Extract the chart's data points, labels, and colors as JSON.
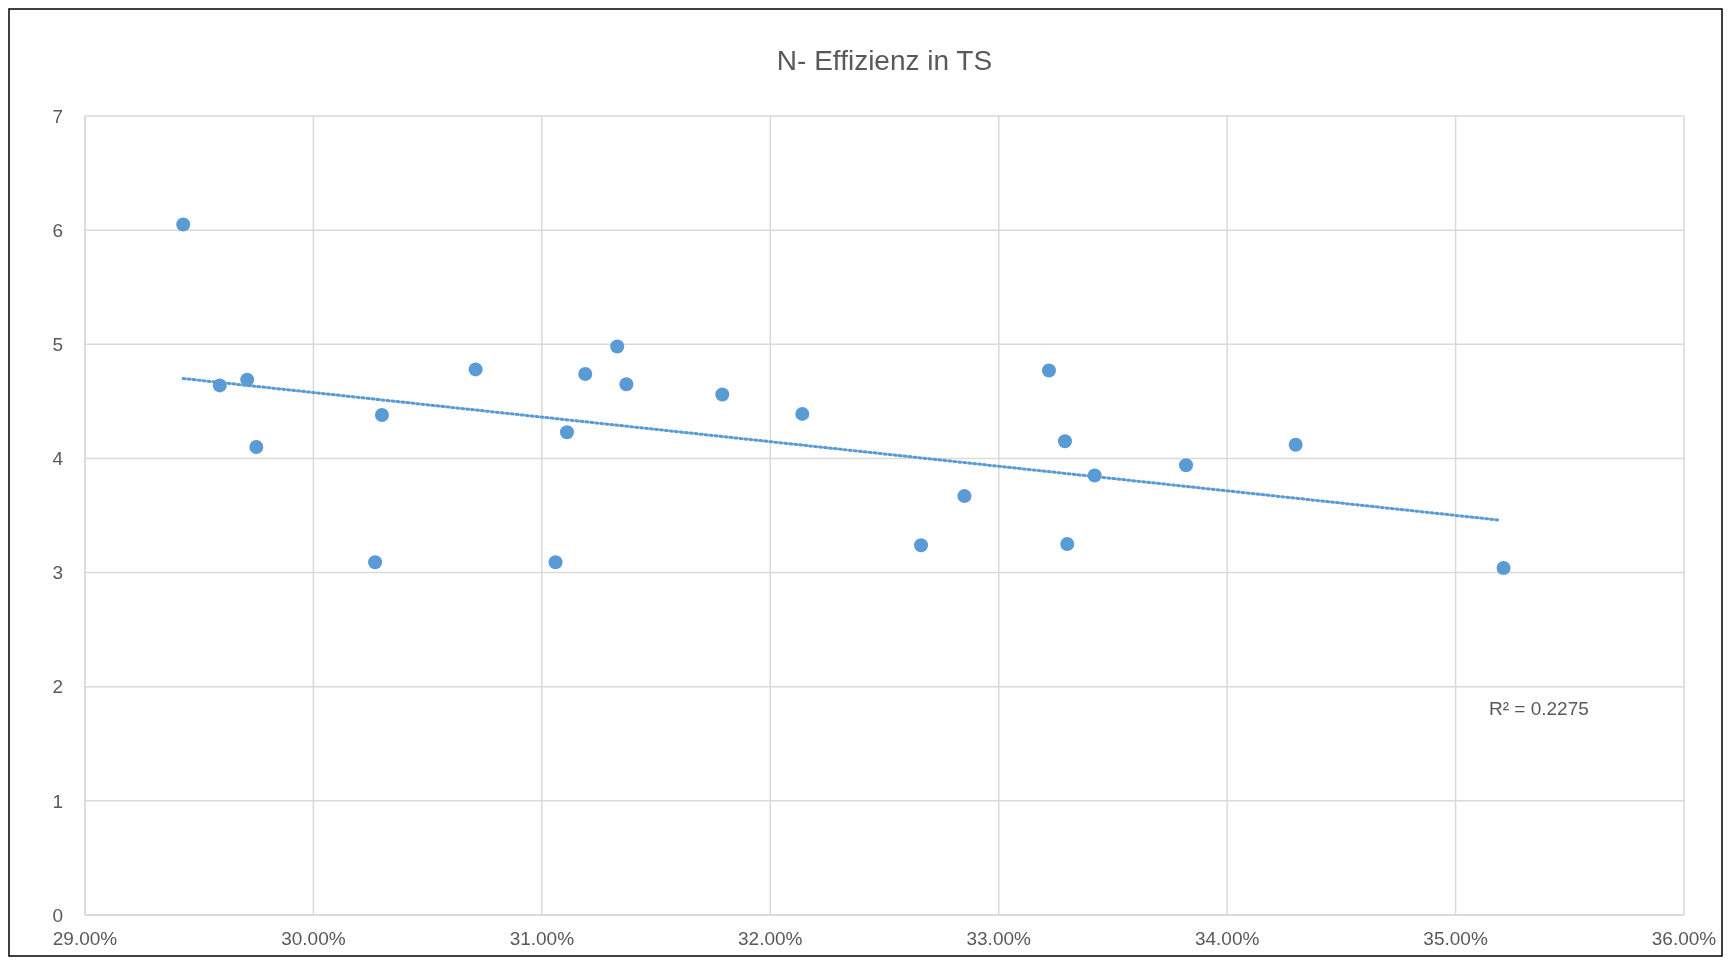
{
  "chart_data": {
    "type": "scatter",
    "title": "N- Effizienz in TS",
    "marker": "circle",
    "grid": true,
    "xlim": [
      29,
      36
    ],
    "xticks": [
      {
        "value": 29,
        "label": "29.00%"
      },
      {
        "value": 30,
        "label": "30.00%"
      },
      {
        "value": 31,
        "label": "31.00%"
      },
      {
        "value": 32,
        "label": "32.00%"
      },
      {
        "value": 33,
        "label": "33.00%"
      },
      {
        "value": 34,
        "label": "34.00%"
      },
      {
        "value": 35,
        "label": "35.00%"
      },
      {
        "value": 36,
        "label": "36.00%"
      }
    ],
    "ylim": [
      0,
      7
    ],
    "yticks": [
      0,
      1,
      2,
      3,
      4,
      5,
      6,
      7
    ],
    "annotations": [
      "R² = 0.2275"
    ],
    "series": [
      {
        "color": "#5b9bd5",
        "x": [
          29.43,
          29.59,
          29.71,
          29.75,
          30.27,
          30.3,
          30.71,
          31.06,
          31.11,
          31.19,
          31.33,
          31.37,
          31.79,
          32.14,
          32.66,
          32.85,
          33.22,
          33.29,
          33.3,
          33.42,
          33.82,
          34.3,
          35.21
        ],
        "values": [
          6.05,
          4.64,
          4.69,
          4.1,
          3.09,
          4.38,
          4.78,
          3.09,
          4.23,
          4.74,
          4.98,
          4.65,
          4.56,
          4.39,
          3.24,
          3.67,
          4.77,
          4.15,
          3.25,
          3.85,
          3.94,
          4.12,
          3.04
        ]
      },
      {
        "type": "line",
        "color": "#5b9bd5",
        "line_style": "dotted",
        "marker": "none",
        "x": [
          29.43,
          35.19
        ],
        "values": [
          4.7,
          3.46
        ]
      }
    ]
  }
}
